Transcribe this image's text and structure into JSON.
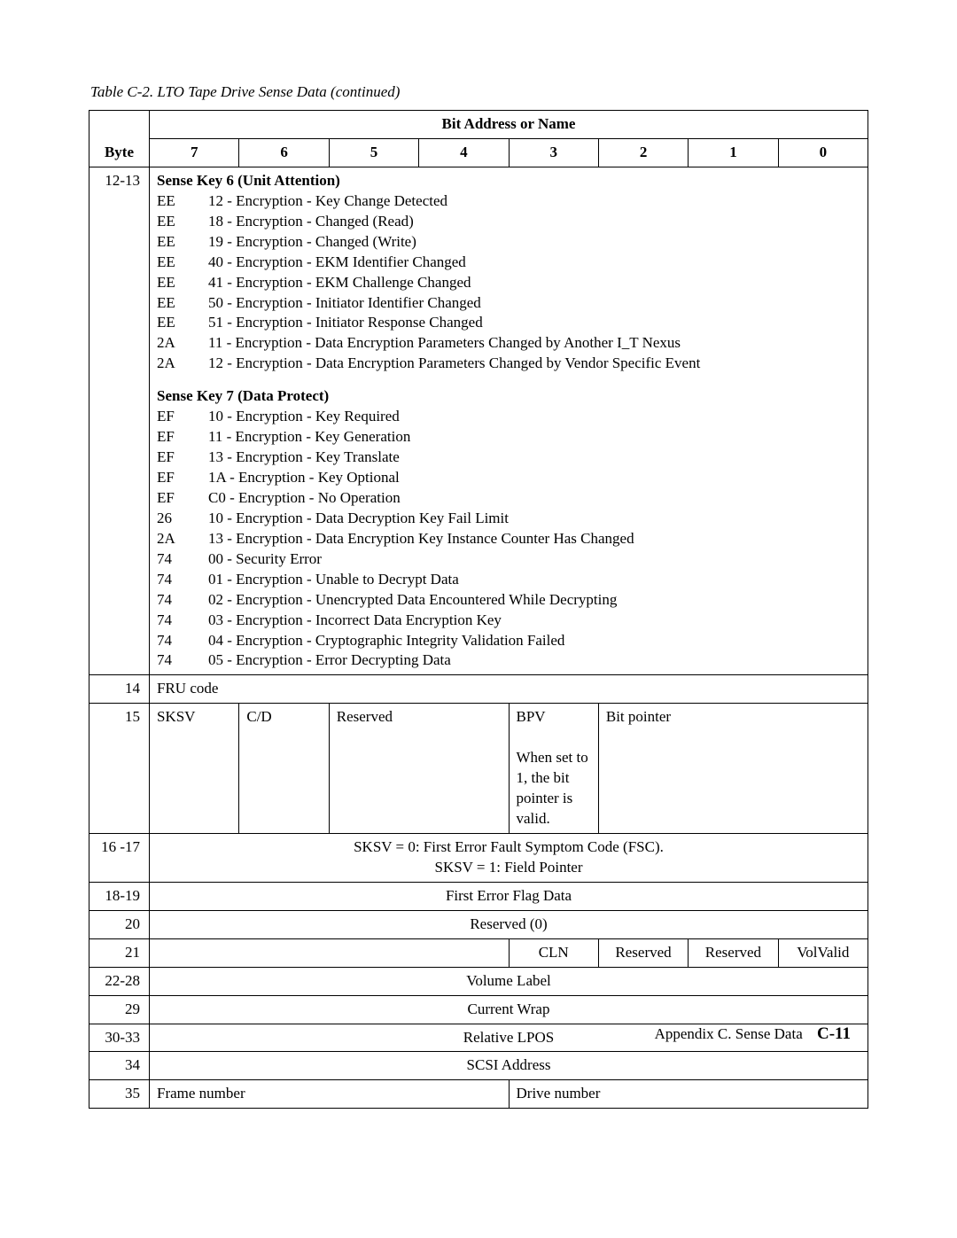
{
  "caption": "Table C-2. LTO Tape Drive Sense Data  (continued)",
  "header": {
    "bit_address_label": "Bit Address or Name",
    "byte_label": "Byte",
    "bits": [
      "7",
      "6",
      "5",
      "4",
      "3",
      "2",
      "1",
      "0"
    ]
  },
  "row_12_13": {
    "byte": "12-13",
    "sk6_title": "Sense Key 6 (Unit Attention)",
    "sk6": [
      {
        "c": "EE",
        "d": "12 - Encryption - Key Change Detected"
      },
      {
        "c": "EE",
        "d": "18 - Encryption - Changed (Read)"
      },
      {
        "c": "EE",
        "d": "19 - Encryption - Changed (Write)"
      },
      {
        "c": "EE",
        "d": "40 - Encryption - EKM Identifier Changed"
      },
      {
        "c": "EE",
        "d": "41 - Encryption - EKM Challenge Changed"
      },
      {
        "c": "EE",
        "d": "50 - Encryption - Initiator Identifier Changed"
      },
      {
        "c": "EE",
        "d": "51 - Encryption - Initiator Response Changed"
      },
      {
        "c": "2A",
        "d": "11 - Encryption - Data Encryption Parameters Changed by Another I_T Nexus"
      },
      {
        "c": "2A",
        "d": "12 - Encryption - Data Encryption Parameters Changed by Vendor Specific Event"
      }
    ],
    "sk7_title": "Sense Key 7 (Data Protect)",
    "sk7": [
      {
        "c": "EF",
        "d": "10 - Encryption - Key Required"
      },
      {
        "c": "EF",
        "d": "11 - Encryption - Key Generation"
      },
      {
        "c": "EF",
        "d": "13 - Encryption - Key Translate"
      },
      {
        "c": "EF",
        "d": "1A - Encryption - Key Optional"
      },
      {
        "c": "EF",
        "d": "C0 - Encryption - No Operation"
      },
      {
        "c": "26",
        "d": "10 - Encryption - Data Decryption Key Fail Limit"
      },
      {
        "c": "2A",
        "d": "13 - Encryption - Data Encryption Key Instance Counter Has Changed"
      },
      {
        "c": "74",
        "d": "00 - Security Error"
      },
      {
        "c": "74",
        "d": "01 - Encryption - Unable to Decrypt Data"
      },
      {
        "c": "74",
        "d": "02 - Encryption - Unencrypted Data Encountered While Decrypting"
      },
      {
        "c": "74",
        "d": "03 - Encryption - Incorrect Data Encryption Key"
      },
      {
        "c": "74",
        "d": "04 - Encryption - Cryptographic Integrity Validation Failed"
      },
      {
        "c": "74",
        "d": "05 - Encryption - Error Decrypting Data"
      }
    ]
  },
  "row_14": {
    "byte": "14",
    "text": "FRU code"
  },
  "row_15": {
    "byte": "15",
    "sksv": "SKSV",
    "cd": "C/D",
    "reserved": "Reserved",
    "bpv": "BPV",
    "bpv_note": "When set to 1, the bit pointer is valid.",
    "bitpointer": "Bit pointer"
  },
  "row_16_17": {
    "byte": "16 -17",
    "line1": "SKSV = 0: First Error Fault Symptom Code (FSC).",
    "line2": "SKSV = 1: Field Pointer"
  },
  "row_18_19": {
    "byte": "18-19",
    "text": "First Error Flag Data"
  },
  "row_20": {
    "byte": "20",
    "text": "Reserved (0)"
  },
  "row_21": {
    "byte": "21",
    "blank": "",
    "cln": "CLN",
    "res1": "Reserved",
    "res2": "Reserved",
    "volvalid": "VolValid"
  },
  "row_22_28": {
    "byte": "22-28",
    "text": "Volume Label"
  },
  "row_29": {
    "byte": "29",
    "text": "Current Wrap"
  },
  "row_30_33": {
    "byte": "30-33",
    "text": "Relative LPOS"
  },
  "row_34": {
    "byte": "34",
    "text": "SCSI Address"
  },
  "row_35": {
    "byte": "35",
    "frame": "Frame number",
    "drive": "Drive number"
  },
  "footer": {
    "text": "Appendix C. Sense Data",
    "page": "C-11"
  }
}
